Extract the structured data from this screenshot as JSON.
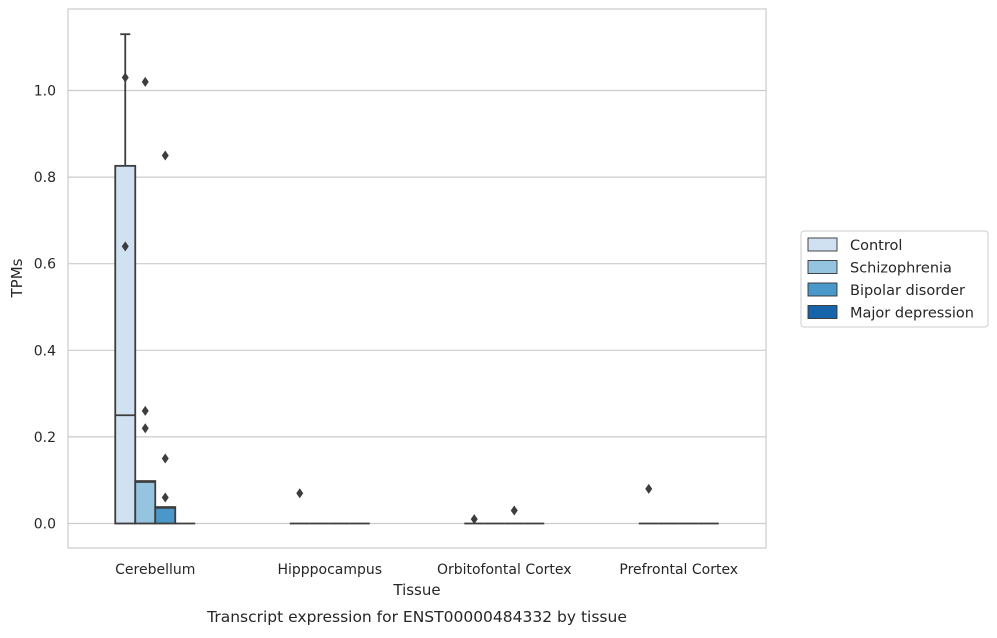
{
  "chart_data": {
    "type": "box",
    "xlabel": "Tissue",
    "ylabel": "TPMs",
    "caption": "Transcript expression for ENST00000484332 by tissue",
    "ylim": [
      -0.055,
      1.18
    ],
    "yticks": [
      0.0,
      0.2,
      0.4,
      0.6,
      0.8,
      1.0
    ],
    "ytick_labels": [
      "0.0",
      "0.2",
      "0.4",
      "0.6",
      "0.8",
      "1.0"
    ],
    "grid": "horizontal",
    "legend_position": "right",
    "categories": [
      "Cerebellum",
      "Hipppocampus",
      "Orbitofontal Cortex",
      "Prefrontal Cortex"
    ],
    "series": [
      {
        "name": "Control",
        "color": "#d0e1f2",
        "boxes": [
          {
            "min": 0.0,
            "q1": 0.0,
            "median": 0.25,
            "q3": 0.826,
            "max": 1.13,
            "outliers": [
              1.03,
              0.64
            ]
          },
          {
            "min": 0.0,
            "q1": 0.0,
            "median": 0.0,
            "q3": 0.0,
            "max": 0.0,
            "outliers": [
              0.07
            ]
          },
          {
            "min": 0.0,
            "q1": 0.0,
            "median": 0.0,
            "q3": 0.0,
            "max": 0.0,
            "outliers": [
              0.01
            ]
          },
          {
            "min": 0.0,
            "q1": 0.0,
            "median": 0.0,
            "q3": 0.0,
            "max": 0.0,
            "outliers": [
              0.08
            ]
          }
        ]
      },
      {
        "name": "Schizophrenia",
        "color": "#94c4df",
        "boxes": [
          {
            "min": 0.0,
            "q1": 0.0,
            "median": 0.096,
            "q3": 0.098,
            "max": 0.098,
            "outliers": [
              1.02,
              0.26,
              0.22
            ]
          },
          {
            "min": 0.0,
            "q1": 0.0,
            "median": 0.0,
            "q3": 0.0,
            "max": 0.0,
            "outliers": []
          },
          {
            "min": 0.0,
            "q1": 0.0,
            "median": 0.0,
            "q3": 0.0,
            "max": 0.0,
            "outliers": []
          },
          {
            "min": 0.0,
            "q1": 0.0,
            "median": 0.0,
            "q3": 0.0,
            "max": 0.0,
            "outliers": []
          }
        ]
      },
      {
        "name": "Bipolar disorder",
        "color": "#4a98c9",
        "boxes": [
          {
            "min": 0.0,
            "q1": 0.0,
            "median": 0.036,
            "q3": 0.038,
            "max": 0.038,
            "outliers": [
              0.85,
              0.15,
              0.06
            ]
          },
          {
            "min": 0.0,
            "q1": 0.0,
            "median": 0.0,
            "q3": 0.0,
            "max": 0.0,
            "outliers": []
          },
          {
            "min": 0.0,
            "q1": 0.0,
            "median": 0.0,
            "q3": 0.0,
            "max": 0.0,
            "outliers": [
              0.03
            ]
          },
          {
            "min": 0.0,
            "q1": 0.0,
            "median": 0.0,
            "q3": 0.0,
            "max": 0.0,
            "outliers": []
          }
        ]
      },
      {
        "name": "Major depression",
        "color": "#1764ab",
        "boxes": [
          {
            "min": 0.0,
            "q1": 0.0,
            "median": 0.0,
            "q3": 0.0,
            "max": 0.0,
            "outliers": []
          },
          {
            "min": 0.0,
            "q1": 0.0,
            "median": 0.0,
            "q3": 0.0,
            "max": 0.0,
            "outliers": []
          },
          {
            "min": 0.0,
            "q1": 0.0,
            "median": 0.0,
            "q3": 0.0,
            "max": 0.0,
            "outliers": []
          },
          {
            "min": 0.0,
            "q1": 0.0,
            "median": 0.0,
            "q3": 0.0,
            "max": 0.0,
            "outliers": []
          }
        ]
      }
    ]
  }
}
